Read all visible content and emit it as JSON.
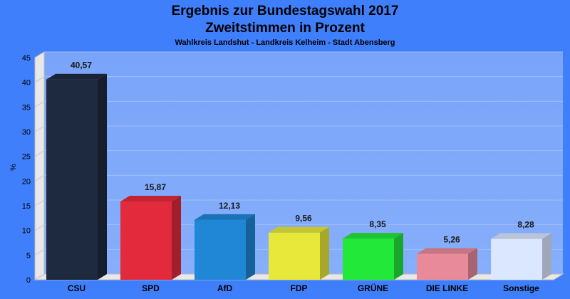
{
  "chart_data": {
    "type": "bar",
    "title": "Ergebnis zur Bundestagswahl 2017",
    "subtitle": "Zweitstimmen in Prozent",
    "subtitle2": "Wahlkreis Landshut - Landkreis Kelheim - Stadt Abensberg",
    "ylabel": "%",
    "xlabel": "",
    "ylim": [
      0,
      45
    ],
    "yticks": [
      "0",
      "5",
      "10",
      "15",
      "20",
      "25",
      "30",
      "35",
      "40",
      "45"
    ],
    "grid": true,
    "categories": [
      "CSU",
      "SPD",
      "AfD",
      "FDP",
      "GRÜNE",
      "DIE LINKE",
      "Sonstige"
    ],
    "values": [
      40.57,
      15.87,
      12.13,
      9.56,
      8.35,
      5.26,
      8.28
    ],
    "value_labels": [
      "40,57",
      "15,87",
      "12,13",
      "9,56",
      "8,35",
      "5,26",
      "8,28"
    ],
    "colors": [
      "#1e2a40",
      "#e32a3c",
      "#1f87d6",
      "#e8e83a",
      "#22e83a",
      "#e88a9a",
      "#dbe6ff"
    ]
  }
}
